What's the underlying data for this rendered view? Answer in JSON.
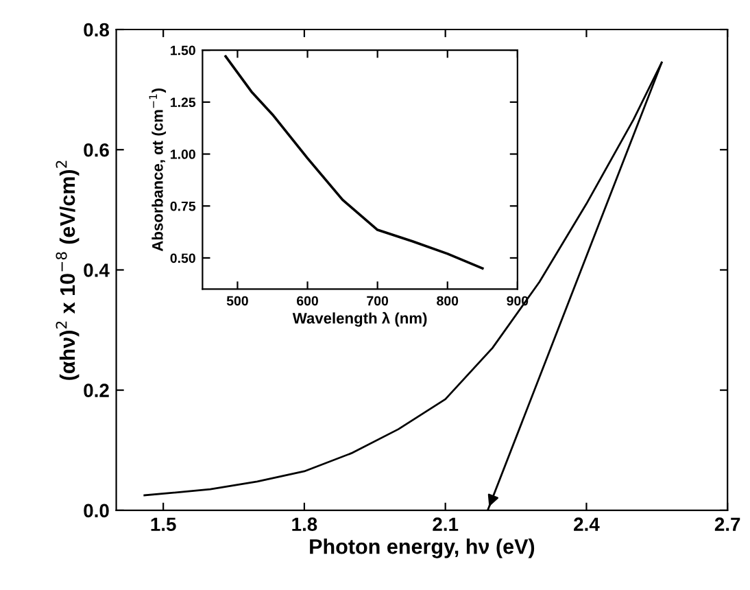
{
  "chart_data": [
    {
      "type": "line",
      "xlabel": "Photon energy, hν (eV)",
      "ylabel": "(αhν)$^{2}$ x 10$^{−8}$ (eV/cm)$^{2}$",
      "series": [
        {
          "color": "#000000",
          "x": [
            1.46,
            1.6,
            1.7,
            1.8,
            1.9,
            2.0,
            2.1,
            2.2,
            2.3,
            2.4,
            2.5,
            2.56
          ],
          "values": [
            0.025,
            0.035,
            0.048,
            0.065,
            0.095,
            0.135,
            0.185,
            0.27,
            0.38,
            0.51,
            0.65,
            0.745
          ]
        },
        {
          "color": "#000000",
          "x": [
            2.56,
            2.19
          ],
          "values": [
            0.745,
            0.0
          ]
        }
      ],
      "xlim": [
        1.4,
        2.7
      ],
      "ylim": [
        0,
        0.8
      ],
      "xticks": [
        1.5,
        1.8,
        2.1,
        2.4,
        2.7
      ],
      "yticks": [
        {
          "value": 0,
          "label": "0.0"
        },
        {
          "value": 0.2,
          "label": "0.2"
        },
        {
          "value": 0.4,
          "label": "0.4"
        },
        {
          "value": 0.6,
          "label": "0.6"
        },
        {
          "value": 0.8,
          "label": "0.8"
        }
      ],
      "grid": false,
      "legend": false
    },
    {
      "type": "line",
      "xlabel": "Wavelength λ (nm)",
      "ylabel": "Absorbance, αt (cm$^{−1}$)",
      "series": [
        {
          "color": "#000000",
          "x": [
            483,
            520,
            550,
            600,
            650,
            700,
            750,
            800,
            850
          ],
          "values": [
            1.47,
            1.3,
            1.19,
            0.98,
            0.78,
            0.635,
            0.58,
            0.52,
            0.45
          ]
        }
      ],
      "xlim": [
        450,
        900
      ],
      "ylim": [
        0.35,
        1.5
      ],
      "xticks": [
        500,
        600,
        700,
        800,
        900
      ],
      "yticks": [
        {
          "value": 0.5,
          "label": "0.50"
        },
        {
          "value": 0.75,
          "label": "0.75"
        },
        {
          "value": 1.0,
          "label": "1.00"
        },
        {
          "value": 1.25,
          "label": "1.25"
        },
        {
          "value": 1.5,
          "label": "1.50"
        }
      ],
      "grid": false,
      "legend": false
    }
  ]
}
